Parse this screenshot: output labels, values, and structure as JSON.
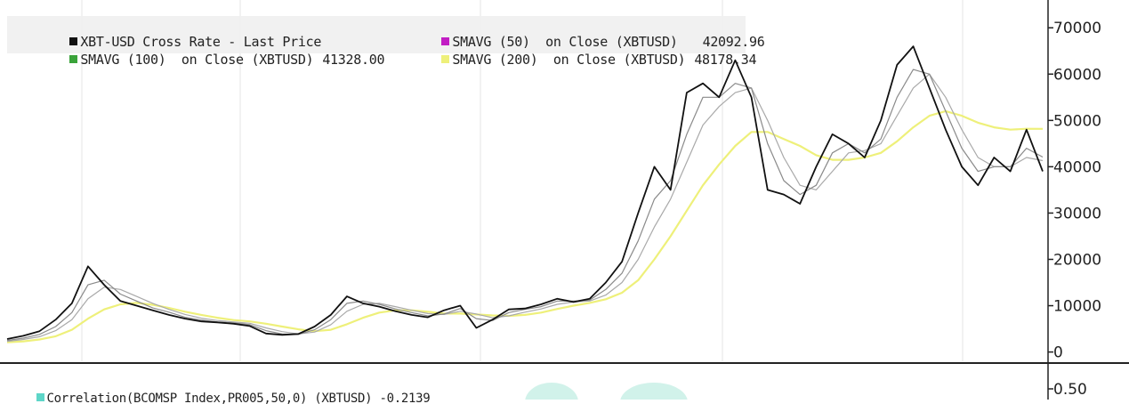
{
  "chart_data": [
    {
      "type": "line",
      "title": "",
      "xlabel": "",
      "ylabel": "",
      "ylim": [
        -2000,
        76000
      ],
      "y_ticks": [
        0,
        10000,
        20000,
        30000,
        40000,
        50000,
        60000,
        70000
      ],
      "y_tick_labels": [
        "0",
        "10000",
        "20000",
        "30000",
        "40000",
        "50000",
        "60000",
        "70000"
      ],
      "grid": "vertical",
      "legend_position": "top-left",
      "colors": {
        "price": "#111111",
        "sma50": "#c21ec4",
        "sma100": "#3aa33a",
        "sma200": "#eef07a"
      },
      "series": [
        {
          "name": "XBT-USD Cross Rate - Last Price",
          "value": "",
          "values": [
            2800,
            3500,
            4500,
            7000,
            10500,
            18500,
            14500,
            11000,
            10000,
            9000,
            8000,
            7200,
            6600,
            6400,
            6100,
            5600,
            4000,
            3700,
            3900,
            5500,
            8000,
            12000,
            10500,
            9800,
            8800,
            8000,
            7500,
            9000,
            10000,
            5200,
            7000,
            9200,
            9400,
            10300,
            11500,
            10800,
            11500,
            15000,
            19500,
            30000,
            40000,
            35000,
            56000,
            58000,
            55000,
            63000,
            55000,
            35000,
            34000,
            32000,
            40000,
            47000,
            45000,
            42000,
            50000,
            62000,
            66000,
            57000,
            48000,
            40000,
            36000,
            42000,
            39000,
            48000,
            39000
          ]
        },
        {
          "name": "SMAVG (50)  on Close (XBTUSD)",
          "value": "42092.96",
          "values": [
            2500,
            3000,
            3800,
            5500,
            8500,
            14500,
            15500,
            12500,
            11000,
            9500,
            8600,
            7500,
            6900,
            6500,
            6300,
            5900,
            4600,
            3900,
            3800,
            4800,
            7000,
            10500,
            11000,
            10300,
            9300,
            8500,
            7800,
            8200,
            9400,
            7200,
            6800,
            8500,
            9200,
            9800,
            11000,
            11000,
            11200,
            13500,
            17000,
            24000,
            33000,
            37000,
            47000,
            55000,
            55000,
            58000,
            57000,
            45000,
            37000,
            34000,
            36000,
            43000,
            45000,
            43000,
            46000,
            55000,
            61000,
            60000,
            52000,
            44000,
            39000,
            40000,
            40000,
            44000,
            42093
          ]
        },
        {
          "name": "SMAVG (100)  on Close (XBTUSD)",
          "value": "41328.00",
          "values": [
            2300,
            2700,
            3300,
            4600,
            7000,
            11500,
            14000,
            13500,
            12000,
            10500,
            9200,
            8100,
            7300,
            6800,
            6500,
            6200,
            5200,
            4400,
            3900,
            4300,
            5900,
            8800,
            10300,
            10500,
            9800,
            9000,
            8300,
            8100,
            8800,
            8200,
            7400,
            7800,
            8600,
            9300,
            10300,
            10800,
            11000,
            12300,
            15000,
            20000,
            27000,
            33000,
            41000,
            49000,
            53000,
            56000,
            57000,
            50000,
            42000,
            36000,
            35000,
            39000,
            43000,
            43500,
            45000,
            51000,
            57000,
            60000,
            55000,
            48000,
            42000,
            40000,
            40000,
            42000,
            41328
          ]
        },
        {
          "name": "SMAVG (200)  on Close (XBTUSD)",
          "value": "48178.34",
          "values": [
            2100,
            2300,
            2700,
            3400,
            4800,
            7200,
            9200,
            10300,
            10600,
            10200,
            9500,
            8700,
            8000,
            7400,
            6900,
            6600,
            6100,
            5500,
            4900,
            4500,
            4800,
            6000,
            7400,
            8500,
            9000,
            9000,
            8700,
            8300,
            8300,
            8100,
            7900,
            7800,
            8000,
            8500,
            9300,
            10000,
            10600,
            11400,
            12800,
            15500,
            20000,
            25000,
            30500,
            36000,
            40500,
            44500,
            47500,
            47500,
            46000,
            44500,
            42500,
            41500,
            41500,
            42000,
            43000,
            45500,
            48500,
            51000,
            52000,
            51000,
            49500,
            48500,
            48000,
            48200,
            48178
          ]
        }
      ]
    },
    {
      "type": "line",
      "title": "",
      "ylim": [
        0.4,
        0.6
      ],
      "y_ticks": [
        0.5
      ],
      "y_tick_labels": [
        "0.50"
      ],
      "legend_position": "top-left",
      "series": [
        {
          "name": "Correlation(BCOMSP Index,PR005,50,0) (XBTUSD)",
          "value": "-0.2139",
          "color": "#5ed6c8"
        }
      ]
    }
  ]
}
